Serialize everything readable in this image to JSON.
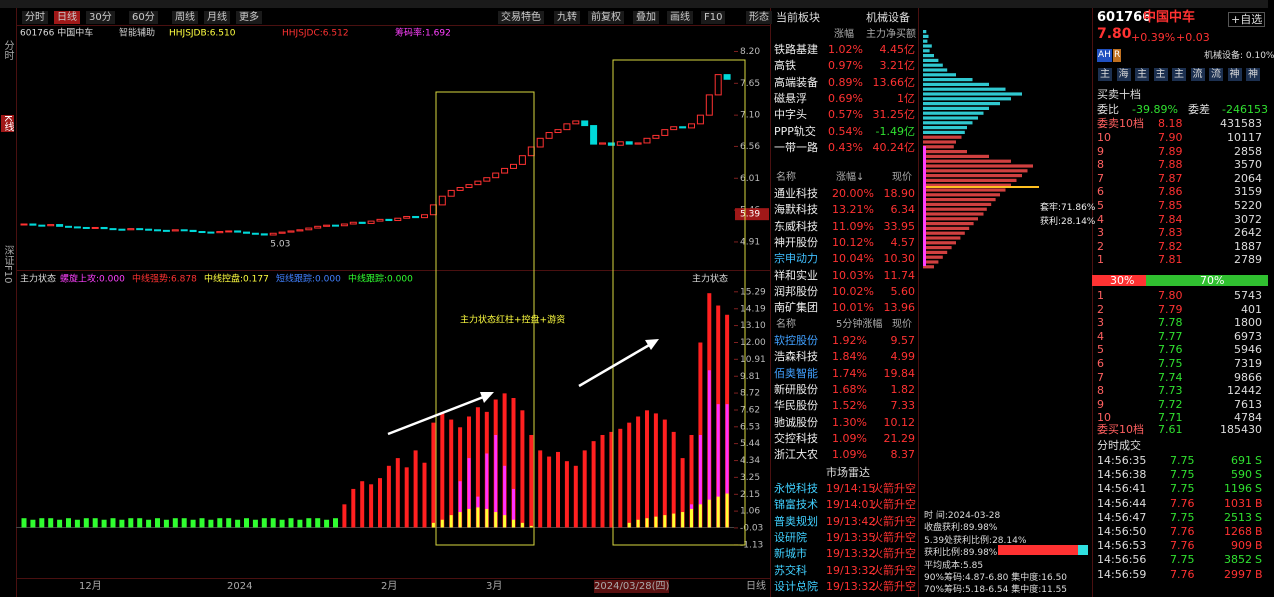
{
  "side_labels": [
    "分时",
    "K线",
    "深证F10"
  ],
  "toolbar": {
    "tabs": [
      "分时",
      "日线",
      "30分",
      "60分",
      "周线",
      "月线",
      "更多"
    ],
    "right": [
      "交易特色",
      "九转",
      "前复权",
      "叠加",
      "画线",
      "F10",
      "形态"
    ]
  },
  "kline": {
    "type": "candlestick",
    "header": [
      "601766 中国中车",
      "智能辅助",
      "HHJSJDB:6.510",
      "HHJSJDC:6.512",
      "筹码率:1.692"
    ],
    "closes": [
      5.22,
      5.2,
      5.19,
      5.21,
      5.18,
      5.17,
      5.16,
      5.15,
      5.16,
      5.14,
      5.13,
      5.12,
      5.14,
      5.13,
      5.12,
      5.11,
      5.1,
      5.12,
      5.11,
      5.09,
      5.08,
      5.07,
      5.09,
      5.1,
      5.08,
      5.06,
      5.05,
      5.03,
      5.06,
      5.08,
      5.1,
      5.12,
      5.15,
      5.18,
      5.2,
      5.19,
      5.22,
      5.25,
      5.23,
      5.27,
      5.3,
      5.28,
      5.32,
      5.35,
      5.33,
      5.38,
      5.55,
      5.7,
      5.8,
      5.85,
      5.9,
      5.96,
      6.02,
      6.1,
      6.18,
      6.25,
      6.4,
      6.55,
      6.7,
      6.8,
      6.85,
      6.95,
      7.0,
      6.92,
      6.6,
      6.62,
      6.58,
      6.64,
      6.6,
      6.62,
      6.7,
      6.75,
      6.85,
      6.9,
      6.88,
      6.95,
      7.1,
      7.45,
      7.8,
      7.72
    ],
    "up_color": "#ff3232",
    "down_color": "#00d8d8",
    "ylim": [
      4.46,
      8.64
    ],
    "yticks": [
      {
        "value": 8.2,
        "label": "8.20"
      },
      7.65,
      {
        "value": 7.1,
        "label": "7.10"
      },
      6.56,
      6.01,
      5.46,
      4.91
    ],
    "cursor_price": 5.39,
    "low_label": 5.03
  },
  "indicator": {
    "type": "bar",
    "title": "主力状态",
    "legend": [
      "螺旋上攻:0.000",
      "中线强势:6.878",
      "中线控盘:0.177",
      "短线跟踪:0.000",
      "中线跟踪:0.000"
    ],
    "legend_colors": [
      "#ff40ff",
      "#ff3232",
      "#ffff40",
      "#4080ff",
      "#30ff30"
    ],
    "annotation": "主力状态红柱+控盘+游资",
    "ylim": [
      -3.28,
      16.64
    ],
    "yticks": [
      15.29,
      14.19,
      {
        "value": 13.1,
        "label": "13.10"
      },
      {
        "value": 12,
        "label": "12.00"
      },
      10.91,
      9.81,
      8.72,
      7.62,
      6.53,
      5.44,
      4.34,
      3.25,
      2.15,
      1.06,
      -0.03,
      -1.13
    ],
    "series": [
      {
        "name": "中线强势",
        "color": "#ff2020",
        "values": [
          0,
          0,
          0,
          0,
          0,
          0,
          0,
          0,
          0,
          0,
          0,
          0,
          0,
          0,
          0,
          0,
          0,
          0,
          0,
          0,
          0,
          0,
          0,
          0,
          0,
          0,
          0,
          0,
          0,
          0,
          0,
          0,
          0,
          0,
          0,
          0.5,
          1.5,
          2.5,
          3.0,
          2.8,
          3.2,
          4.0,
          4.5,
          3.9,
          5.0,
          4.2,
          6.8,
          7.4,
          7.0,
          6.5,
          7.2,
          7.8,
          7.5,
          8.3,
          8.7,
          8.4,
          7.6,
          6.0,
          5.0,
          4.6,
          4.9,
          4.3,
          4.0,
          5.0,
          5.6,
          6.0,
          6.2,
          6.4,
          6.8,
          7.2,
          7.6,
          7.4,
          7.0,
          6.2,
          4.5,
          6.0,
          12.0,
          15.2,
          14.4,
          13.8
        ]
      },
      {
        "name": "螺旋上攻",
        "color": "#ff30ff",
        "values": [
          0,
          0,
          0,
          0,
          0,
          0,
          0,
          0,
          0,
          0,
          0,
          0,
          0,
          0,
          0,
          0,
          0,
          0,
          0,
          0,
          0,
          0,
          0,
          0,
          0,
          0,
          0,
          0,
          0,
          0,
          0,
          0,
          0,
          0,
          0,
          0,
          0,
          0,
          0,
          0,
          0,
          0,
          0,
          0,
          0,
          0,
          0,
          0,
          0,
          3.0,
          4.5,
          2.0,
          4.8,
          6.0,
          4.0,
          2.5,
          0,
          0,
          0,
          0,
          0,
          0,
          0,
          0,
          0,
          0,
          0,
          0,
          0,
          0,
          0,
          0,
          0,
          0,
          0,
          1.5,
          6.0,
          10.2,
          8.0,
          8.0
        ]
      },
      {
        "name": "中线控盘",
        "color": "#ffff30",
        "values": [
          0,
          0,
          0,
          0,
          0,
          0,
          0,
          0,
          0,
          0,
          0,
          0,
          0,
          0,
          0,
          0,
          0,
          0,
          0,
          0,
          0,
          0,
          0,
          0,
          0,
          0,
          0,
          0,
          0,
          0,
          0,
          0,
          0,
          0,
          0,
          0,
          0,
          0,
          0,
          0,
          0,
          0,
          0,
          0,
          0,
          0,
          0.3,
          0.5,
          0.8,
          1.0,
          1.2,
          1.3,
          1.2,
          1.0,
          0.8,
          0.5,
          0.3,
          0.1,
          0,
          0,
          0,
          0,
          0,
          0,
          0,
          0,
          0,
          0,
          0.3,
          0.5,
          0.6,
          0.7,
          0.8,
          0.9,
          1.0,
          1.2,
          1.5,
          1.8,
          2.0,
          2.2
        ]
      },
      {
        "name": "中线跟踪",
        "color": "#30ff30",
        "values": [
          0.6,
          0.5,
          0.6,
          0.6,
          0.5,
          0.6,
          0.5,
          0.6,
          0.6,
          0.5,
          0.6,
          0.5,
          0.6,
          0.6,
          0.5,
          0.6,
          0.5,
          0.6,
          0.6,
          0.5,
          0.6,
          0.5,
          0.6,
          0.6,
          0.5,
          0.6,
          0.5,
          0.6,
          0.6,
          0.5,
          0.6,
          0.5,
          0.6,
          0.6,
          0.5,
          0.6,
          0,
          0,
          0,
          0,
          0,
          0,
          0,
          0,
          0,
          0,
          0,
          0,
          0,
          0,
          0,
          0,
          0,
          0,
          0,
          0,
          0,
          0,
          0,
          0,
          0,
          0,
          0,
          0,
          0,
          0,
          0,
          0,
          0,
          0,
          0,
          0,
          0,
          0,
          0,
          0,
          0,
          0,
          0,
          0
        ]
      }
    ]
  },
  "x_axis": [
    "12月",
    "2024",
    "2月",
    "3月",
    "2024/03/28(四)",
    "日线"
  ],
  "sector_panel": {
    "title": "当前板块",
    "sector": "机械设备",
    "columns": [
      "涨幅",
      "主力净买额"
    ],
    "rows": [
      [
        "铁路基建",
        "1.02%",
        "4.45亿"
      ],
      [
        "高铁",
        "0.97%",
        "3.21亿"
      ],
      [
        "高端装备",
        "0.89%",
        "13.66亿"
      ],
      [
        "磁悬浮",
        "0.69%",
        "1亿"
      ],
      [
        "中字头",
        "0.57%",
        "31.25亿"
      ],
      [
        "PPP轨交",
        "0.54%",
        "-1.49亿"
      ],
      [
        "一带一路",
        "0.43%",
        "40.24亿"
      ]
    ]
  },
  "gainers": {
    "columns": [
      "名称",
      "涨幅↓",
      "现价"
    ],
    "rows": [
      [
        "通业科技",
        "20.00%",
        "18.90"
      ],
      [
        "海默科技",
        "13.21%",
        "6.34"
      ],
      [
        "东威科技",
        "11.09%",
        "33.95"
      ],
      [
        "神开股份",
        "10.12%",
        "4.57"
      ],
      [
        "宗申动力",
        "10.04%",
        "10.30"
      ],
      [
        "祥和实业",
        "10.03%",
        "11.74"
      ],
      [
        "润邦股份",
        "10.02%",
        "5.60"
      ],
      [
        "南矿集团",
        "10.01%",
        "13.96"
      ]
    ]
  },
  "speed": {
    "columns": [
      "名称",
      "5分钟涨幅",
      "现价"
    ],
    "rows": [
      [
        "软控股份",
        "1.92%",
        "9.57"
      ],
      [
        "浩森科技",
        "1.84%",
        "4.99"
      ],
      [
        "佰奥智能",
        "1.74%",
        "19.84"
      ],
      [
        "新研股份",
        "1.68%",
        "1.82"
      ],
      [
        "华民股份",
        "1.52%",
        "7.33"
      ],
      [
        "驰诚股份",
        "1.30%",
        "10.12"
      ],
      [
        "交控科技",
        "1.09%",
        "21.29"
      ],
      [
        "浙江大农",
        "1.09%",
        "8.37"
      ]
    ]
  },
  "radar": {
    "title": "市场雷达",
    "rows": [
      [
        "永悦科技",
        "19/14:15",
        "火箭升空"
      ],
      [
        "锦富技术",
        "19/14:01",
        "火箭升空"
      ],
      [
        "普奥规划",
        "19/13:42",
        "火箭升空"
      ],
      [
        "设研院",
        "19/13:35",
        "火箭升空"
      ],
      [
        "新城市",
        "19/13:32",
        "火箭升空"
      ],
      [
        "苏交科",
        "19/13:32",
        "火箭升空"
      ],
      [
        "设计总院",
        "19/13:32",
        "火箭升空"
      ]
    ]
  },
  "chips": {
    "profile": [
      3,
      5,
      4,
      8,
      6,
      10,
      14,
      18,
      22,
      30,
      45,
      60,
      75,
      90,
      80,
      70,
      60,
      55,
      50,
      45,
      40,
      38,
      35,
      30,
      28,
      40,
      60,
      80,
      100,
      95,
      90,
      85,
      80,
      75,
      70,
      66,
      62,
      58,
      55,
      50,
      46,
      42,
      38,
      34,
      30,
      26,
      22,
      18,
      14,
      10
    ],
    "labels": [
      "套牢:71.86%",
      "获利:28.14%"
    ],
    "stats": [
      "时  间:2024-03-28",
      "收盘获利:89.98%",
      "5.39处获利比例:28.14%",
      "获利比例:89.98%",
      "平均成本:5.85",
      "90%筹码:4.87-6.80 集中度:16.50",
      "70%筹码:5.18-6.54 集中度:11.55"
    ]
  },
  "quote": {
    "code": "601766",
    "name": "中国中车",
    "watch": "+自选",
    "price": "7.80",
    "pct": "+0.39%",
    "chg": "+0.03",
    "tags": [
      "AH",
      "R"
    ],
    "sector": "机械设备: 0.10%",
    "buttons": [
      "主",
      "海",
      "主",
      "主",
      "主",
      "流",
      "流",
      "神",
      "神"
    ],
    "book_title": "买卖十档",
    "ratio_label": "委比",
    "ratio": "-39.89%",
    "diff_label": "委差",
    "diff": "-246153",
    "ask_total": [
      "委卖10档",
      "8.18",
      "431583"
    ],
    "asks": [
      [
        "10",
        "7.90",
        "10117"
      ],
      [
        "9",
        "7.89",
        "2858"
      ],
      [
        "8",
        "7.88",
        "3570"
      ],
      [
        "7",
        "7.87",
        "2064"
      ],
      [
        "6",
        "7.86",
        "3159"
      ],
      [
        "5",
        "7.85",
        "5220"
      ],
      [
        "4",
        "7.84",
        "3072"
      ],
      [
        "3",
        "7.83",
        "2642"
      ],
      [
        "2",
        "7.82",
        "1887"
      ],
      [
        "1",
        "7.81",
        "2789"
      ]
    ],
    "split": [
      "30%",
      "70%"
    ],
    "bids": [
      [
        "1",
        "7.80",
        "5743"
      ],
      [
        "2",
        "7.79",
        "401"
      ],
      [
        "3",
        "7.78",
        "1800"
      ],
      [
        "4",
        "7.77",
        "6973"
      ],
      [
        "5",
        "7.76",
        "5946"
      ],
      [
        "6",
        "7.75",
        "7319"
      ],
      [
        "7",
        "7.74",
        "9866"
      ],
      [
        "8",
        "7.73",
        "12442"
      ],
      [
        "9",
        "7.72",
        "7613"
      ],
      [
        "10",
        "7.71",
        "4784"
      ]
    ],
    "bid_total": [
      "委买10档",
      "7.61",
      "185430"
    ],
    "trades_title": "分时成交",
    "trades": [
      [
        "14:56:35",
        "7.75",
        "691",
        "S"
      ],
      [
        "14:56:38",
        "7.75",
        "590",
        "S"
      ],
      [
        "14:56:41",
        "7.75",
        "1196",
        "S"
      ],
      [
        "14:56:44",
        "7.76",
        "1031",
        "B"
      ],
      [
        "14:56:47",
        "7.75",
        "2513",
        "S"
      ],
      [
        "14:56:50",
        "7.76",
        "1268",
        "B"
      ],
      [
        "14:56:53",
        "7.76",
        "909",
        "B"
      ],
      [
        "14:56:56",
        "7.75",
        "3852",
        "S"
      ],
      [
        "14:56:59",
        "7.76",
        "2997",
        "B"
      ]
    ]
  }
}
